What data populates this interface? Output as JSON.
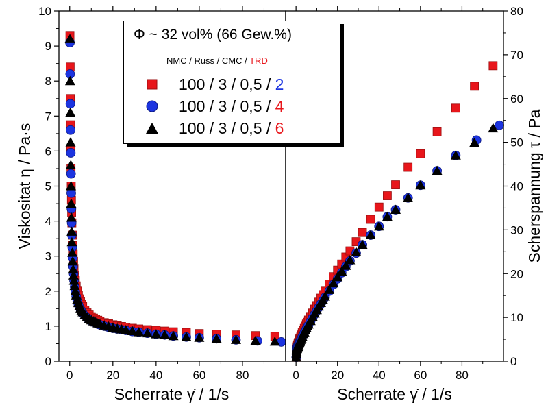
{
  "chart_data": [
    {
      "type": "scatter",
      "xlabel": "Scherrate γ̇ / 1/s",
      "ylabel": "Viskositat η / Pa·s",
      "xlim": [
        -5,
        100
      ],
      "ylim": [
        0,
        10
      ],
      "xticks": [
        "0",
        "20",
        "40",
        "60",
        "80"
      ],
      "yticks": [
        "0",
        "1",
        "2",
        "3",
        "4",
        "5",
        "6",
        "7",
        "8",
        "9",
        "10"
      ],
      "series": [
        {
          "name": "100 / 3 / 0,5 / 2",
          "marker": "square",
          "color": "#e8161b",
          "x": [
            0.1,
            0.2,
            0.3,
            0.4,
            0.5,
            0.6,
            0.7,
            0.8,
            0.9,
            1,
            1.2,
            1.4,
            1.6,
            1.8,
            2,
            2.3,
            2.6,
            3,
            3.5,
            4,
            4.5,
            5,
            5.5,
            6,
            7,
            8,
            9,
            10,
            11,
            12,
            13,
            14,
            16,
            18,
            20,
            22,
            24,
            26,
            29,
            32,
            36,
            40,
            44,
            48,
            54,
            60,
            68,
            77,
            86,
            95
          ],
          "y": [
            9.3,
            8.4,
            7.5,
            6.75,
            6.05,
            5.5,
            5.0,
            4.6,
            4.25,
            3.95,
            3.6,
            3.3,
            3.05,
            2.85,
            2.65,
            2.45,
            2.3,
            2.15,
            2.0,
            1.88,
            1.78,
            1.7,
            1.62,
            1.56,
            1.46,
            1.38,
            1.32,
            1.27,
            1.23,
            1.2,
            1.17,
            1.14,
            1.1,
            1.07,
            1.04,
            1.01,
            0.99,
            0.97,
            0.94,
            0.92,
            0.9,
            0.88,
            0.86,
            0.84,
            0.82,
            0.79,
            0.77,
            0.75,
            0.73,
            0.71
          ]
        },
        {
          "name": "100 / 3 / 0,5 / 4",
          "marker": "circle",
          "color": "#1c34e0",
          "x": [
            0.1,
            0.2,
            0.3,
            0.4,
            0.5,
            0.6,
            0.7,
            0.8,
            0.9,
            1,
            1.2,
            1.4,
            1.6,
            1.8,
            2,
            2.3,
            2.6,
            3,
            3.5,
            4,
            4.5,
            5,
            5.5,
            6,
            7,
            8,
            9,
            10,
            11,
            12,
            13,
            14,
            16,
            18,
            20,
            22,
            24,
            26,
            29,
            32,
            36,
            40,
            44,
            48,
            54,
            60,
            68,
            77,
            87,
            98
          ],
          "y": [
            9.1,
            8.2,
            7.35,
            6.6,
            5.95,
            5.35,
            4.8,
            4.35,
            3.95,
            3.6,
            3.25,
            2.95,
            2.7,
            2.5,
            2.3,
            2.12,
            1.98,
            1.85,
            1.72,
            1.62,
            1.54,
            1.48,
            1.42,
            1.37,
            1.3,
            1.24,
            1.19,
            1.15,
            1.12,
            1.09,
            1.06,
            1.04,
            1.0,
            0.97,
            0.94,
            0.92,
            0.9,
            0.88,
            0.85,
            0.83,
            0.8,
            0.77,
            0.75,
            0.72,
            0.69,
            0.67,
            0.64,
            0.61,
            0.58,
            0.55
          ]
        },
        {
          "name": "100 / 3 / 0,5 / 6",
          "marker": "triangle",
          "color": "#000000",
          "x": [
            0.1,
            0.2,
            0.3,
            0.4,
            0.5,
            0.6,
            0.7,
            0.8,
            0.9,
            1,
            1.2,
            1.4,
            1.6,
            1.8,
            2,
            2.3,
            2.6,
            3,
            3.5,
            4,
            4.5,
            5,
            5.5,
            6,
            7,
            8,
            9,
            10,
            11,
            12,
            13,
            14,
            16,
            18,
            20,
            22,
            24,
            26,
            29,
            32,
            36,
            40,
            44,
            48,
            54,
            60,
            68,
            77,
            86,
            95
          ],
          "y": [
            9.2,
            8.0,
            7.1,
            6.25,
            5.6,
            5.0,
            4.5,
            4.1,
            3.7,
            3.4,
            3.1,
            2.85,
            2.62,
            2.45,
            2.3,
            2.15,
            2.0,
            1.88,
            1.76,
            1.66,
            1.58,
            1.51,
            1.45,
            1.4,
            1.32,
            1.26,
            1.21,
            1.17,
            1.14,
            1.11,
            1.08,
            1.06,
            1.02,
            0.99,
            0.96,
            0.93,
            0.91,
            0.89,
            0.86,
            0.83,
            0.8,
            0.77,
            0.75,
            0.72,
            0.69,
            0.67,
            0.64,
            0.61,
            0.58,
            0.56
          ]
        }
      ]
    },
    {
      "type": "scatter",
      "xlabel": "Scherrate γ̇ / 1/s",
      "ylabel": "Scherspannung τ / Pa",
      "xlim": [
        -5,
        100
      ],
      "ylim": [
        0,
        80
      ],
      "xticks": [
        "0",
        "20",
        "40",
        "60",
        "80"
      ],
      "yticks": [
        "0",
        "10",
        "20",
        "30",
        "40",
        "50",
        "60",
        "70",
        "80"
      ],
      "series": [
        {
          "name": "100 / 3 / 0,5 / 2",
          "marker": "square",
          "color": "#e8161b",
          "x": [
            0.1,
            0.2,
            0.3,
            0.4,
            0.5,
            0.6,
            0.7,
            0.8,
            0.9,
            1,
            1.2,
            1.4,
            1.6,
            1.8,
            2,
            2.3,
            2.6,
            3,
            3.5,
            4,
            4.5,
            5,
            5.5,
            6,
            7,
            8,
            9,
            10,
            11,
            12,
            13,
            14,
            16,
            18,
            20,
            22,
            24,
            26,
            29,
            32,
            36,
            40,
            44,
            48,
            54,
            60,
            68,
            77,
            86,
            95
          ],
          "y": [
            0.9,
            1.7,
            2.3,
            2.7,
            3.0,
            3.3,
            3.5,
            3.7,
            3.8,
            4.0,
            4.3,
            4.6,
            4.9,
            5.1,
            5.3,
            5.6,
            6.0,
            6.5,
            7.0,
            7.5,
            8.0,
            8.5,
            8.9,
            9.4,
            10.2,
            11.0,
            11.9,
            12.7,
            13.5,
            14.4,
            15.2,
            16.0,
            17.6,
            19.3,
            20.8,
            22.2,
            23.8,
            25.2,
            27.3,
            29.4,
            32.4,
            35.2,
            37.8,
            40.3,
            44.3,
            47.4,
            52.4,
            57.8,
            62.8,
            67.5
          ]
        },
        {
          "name": "100 / 3 / 0,5 / 4",
          "marker": "circle",
          "color": "#1c34e0",
          "x": [
            0.1,
            0.2,
            0.3,
            0.4,
            0.5,
            0.6,
            0.7,
            0.8,
            0.9,
            1,
            1.2,
            1.4,
            1.6,
            1.8,
            2,
            2.3,
            2.6,
            3,
            3.5,
            4,
            4.5,
            5,
            5.5,
            6,
            7,
            8,
            9,
            10,
            11,
            12,
            13,
            14,
            16,
            18,
            20,
            22,
            24,
            26,
            29,
            32,
            36,
            40,
            44,
            48,
            54,
            60,
            68,
            77,
            87,
            98
          ],
          "y": [
            0.9,
            1.6,
            2.2,
            2.6,
            3.0,
            3.2,
            3.4,
            3.5,
            3.6,
            3.6,
            3.9,
            4.1,
            4.3,
            4.5,
            4.6,
            4.9,
            5.1,
            5.6,
            6.0,
            6.5,
            6.9,
            7.4,
            7.8,
            8.2,
            9.1,
            9.9,
            10.7,
            11.5,
            12.3,
            13.1,
            13.8,
            14.6,
            16.0,
            17.5,
            18.8,
            20.2,
            21.6,
            22.9,
            24.7,
            26.6,
            28.8,
            30.8,
            33.0,
            34.6,
            37.3,
            40.2,
            43.5,
            47.0,
            50.5,
            53.9
          ]
        },
        {
          "name": "100 / 3 / 0,5 / 6",
          "marker": "triangle",
          "color": "#000000",
          "x": [
            0.1,
            0.2,
            0.3,
            0.4,
            0.5,
            0.6,
            0.7,
            0.8,
            0.9,
            1,
            1.2,
            1.4,
            1.6,
            1.8,
            2,
            2.3,
            2.6,
            3,
            3.5,
            4,
            4.5,
            5,
            5.5,
            6,
            7,
            8,
            9,
            10,
            11,
            12,
            13,
            14,
            16,
            18,
            20,
            22,
            24,
            26,
            29,
            32,
            36,
            40,
            44,
            48,
            54,
            60,
            68,
            77,
            86,
            95
          ],
          "y": [
            0.9,
            1.6,
            2.1,
            2.5,
            2.8,
            3.0,
            3.2,
            3.3,
            3.3,
            3.4,
            3.7,
            4.0,
            4.2,
            4.4,
            4.6,
            4.9,
            5.2,
            5.6,
            6.2,
            6.6,
            7.1,
            7.6,
            8.0,
            8.4,
            9.2,
            10.1,
            10.9,
            11.7,
            12.5,
            13.3,
            14.0,
            14.8,
            16.3,
            17.8,
            19.2,
            20.5,
            21.8,
            23.1,
            24.9,
            26.6,
            28.8,
            30.8,
            33.0,
            34.6,
            37.3,
            40.2,
            43.5,
            47.0,
            49.9,
            53.2
          ]
        }
      ]
    }
  ],
  "legend": {
    "title": "Φ ~ 32 vol% (66 Gew.%)",
    "subtitle_prefix": "NMC / Russ / CMC / ",
    "subtitle_highlight": "TRD",
    "rows": [
      {
        "prefix": "100 / 3 / 0,5 / ",
        "suffix": "2",
        "suffix_color": "#1c34e0",
        "marker": "square",
        "color": "#e8161b"
      },
      {
        "prefix": "100 / 3 / 0,5 / ",
        "suffix": "4",
        "suffix_color": "#e8161b",
        "marker": "circle",
        "color": "#1c34e0"
      },
      {
        "prefix": "100 / 3 / 0,5 / ",
        "suffix": "6",
        "suffix_color": "#e8161b",
        "marker": "triangle",
        "color": "#000000"
      }
    ]
  }
}
